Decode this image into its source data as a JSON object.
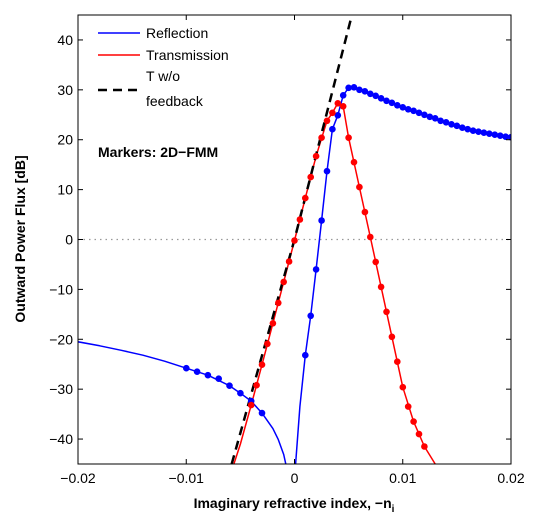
{
  "chart_data": {
    "type": "line",
    "xlabel": "Imaginary refractive index, −n",
    "xlabel_subscript": "i",
    "ylabel": "Outward Power Flux [dB]",
    "xlim": [
      -0.02,
      0.02
    ],
    "ylim": [
      -45,
      45
    ],
    "x_ticks": [
      -0.02,
      -0.01,
      0,
      0.01,
      0.02
    ],
    "x_tick_labels": [
      "−0.02",
      "−0.01",
      "0",
      "0.01",
      "0.02"
    ],
    "y_ticks": [
      -40,
      -30,
      -20,
      -10,
      0,
      10,
      20,
      30,
      40
    ],
    "y_tick_labels": [
      "−40",
      "−30",
      "−20",
      "−10",
      "0",
      "10",
      "20",
      "30",
      "40"
    ],
    "grid": false,
    "zero_reference_line": {
      "y": 0,
      "style": "dotted",
      "color": "#999999"
    },
    "legend_position": "top-left",
    "annotation": "Markers: 2D−FMM",
    "series": [
      {
        "name": "Reflection",
        "color": "#0000ff",
        "style": "solid",
        "curve_segments": [
          {
            "x": [
              -0.02,
              -0.018,
              -0.016,
              -0.014,
              -0.012,
              -0.01,
              -0.008,
              -0.006,
              -0.005,
              -0.004,
              -0.003,
              -0.002,
              -0.0015,
              -0.001,
              -0.0008
            ],
            "y": [
              -20.5,
              -21.3,
              -22.2,
              -23.2,
              -24.4,
              -25.8,
              -27.2,
              -29.3,
              -30.8,
              -32.4,
              -34.8,
              -37.9,
              -40.1,
              -43.1,
              -45.0
            ]
          },
          {
            "x": [
              0.0001,
              0.0005,
              0.001,
              0.0015,
              0.002,
              0.0025,
              0.003,
              0.0035,
              0.004,
              0.0045,
              0.005,
              0.0055,
              0.006,
              0.007,
              0.008,
              0.009,
              0.01,
              0.012,
              0.014,
              0.016,
              0.018,
              0.02
            ],
            "y": [
              -45.0,
              -33.5,
              -23.2,
              -15.3,
              -6.0,
              3.8,
              13.7,
              22.1,
              24.9,
              28.9,
              30.4,
              30.5,
              30.0,
              29.2,
              28.3,
              27.4,
              26.5,
              25.0,
              23.5,
              22.1,
              21.2,
              20.5
            ]
          }
        ],
        "markers": {
          "x": [
            -0.01,
            -0.009,
            -0.008,
            -0.007,
            -0.006,
            -0.005,
            -0.004,
            -0.003,
            0.001,
            0.0015,
            0.002,
            0.0025,
            0.003,
            0.0035,
            0.004,
            0.0045,
            0.005,
            0.0055,
            0.006,
            0.0065,
            0.007,
            0.0075,
            0.008,
            0.0085,
            0.009,
            0.0095,
            0.01,
            0.0105,
            0.011,
            0.0115,
            0.012,
            0.0125,
            0.013,
            0.0135,
            0.014,
            0.0145,
            0.015,
            0.0155,
            0.016,
            0.0165,
            0.017,
            0.0175,
            0.018,
            0.0185,
            0.019,
            0.0195,
            0.02
          ],
          "y": [
            -25.8,
            -26.5,
            -27.2,
            -27.9,
            -29.3,
            -30.8,
            -32.4,
            -34.8,
            -23.2,
            -15.3,
            -6.0,
            3.8,
            13.7,
            22.1,
            24.9,
            28.9,
            30.4,
            30.5,
            30.0,
            29.7,
            29.2,
            28.8,
            28.3,
            27.8,
            27.4,
            26.9,
            26.5,
            26.1,
            25.8,
            25.4,
            25.0,
            24.6,
            24.3,
            23.8,
            23.5,
            23.1,
            22.8,
            22.4,
            22.1,
            21.8,
            21.6,
            21.4,
            21.2,
            21.0,
            20.8,
            20.6,
            20.5
          ]
        }
      },
      {
        "name": "Transmission",
        "color": "#ff0000",
        "style": "solid",
        "curve_segments": [
          {
            "x": [
              -0.0056,
              -0.005,
              -0.004,
              -0.003,
              -0.002,
              -0.001,
              0.0,
              0.001,
              0.002,
              0.003,
              0.0035,
              0.004,
              0.0045,
              0.005,
              0.006,
              0.007,
              0.008,
              0.009,
              0.01,
              0.011,
              0.012,
              0.013
            ],
            "y": [
              -45.0,
              -41.0,
              -33.2,
              -25.1,
              -16.8,
              -8.5,
              -0.2,
              8.3,
              16.7,
              23.8,
              25.4,
              27.3,
              26.7,
              20.4,
              10.5,
              0.5,
              -9.5,
              -19.5,
              -29.6,
              -36.5,
              -41.5,
              -45.0
            ]
          }
        ],
        "markers": {
          "x": [
            -0.004,
            -0.0035,
            -0.003,
            -0.0025,
            -0.002,
            -0.0015,
            -0.001,
            -0.0005,
            0.0,
            0.0005,
            0.001,
            0.0015,
            0.002,
            0.0025,
            0.003,
            0.0035,
            0.004,
            0.0045,
            0.005,
            0.0055,
            0.006,
            0.0065,
            0.007,
            0.0075,
            0.008,
            0.0085,
            0.009,
            0.0095,
            0.01,
            0.0105,
            0.011,
            0.0115,
            0.012
          ],
          "y": [
            -33.2,
            -29.2,
            -25.1,
            -20.9,
            -16.8,
            -12.7,
            -8.5,
            -4.4,
            -0.2,
            4.0,
            8.3,
            12.5,
            16.7,
            20.4,
            23.8,
            25.4,
            27.3,
            26.7,
            20.4,
            15.5,
            10.5,
            5.5,
            0.5,
            -4.5,
            -9.5,
            -14.5,
            -19.5,
            -24.5,
            -29.6,
            -33.5,
            -36.5,
            -39.0,
            -41.5
          ]
        }
      },
      {
        "name": "T w/o feedback",
        "legend_lines": [
          "T w/o",
          "feedback"
        ],
        "color": "#000000",
        "style": "dashed",
        "curve_segments": [
          {
            "x": [
              -0.0058,
              0.0,
              0.0053
            ],
            "y": [
              -45.0,
              0.0,
              45.0
            ]
          }
        ]
      }
    ]
  }
}
